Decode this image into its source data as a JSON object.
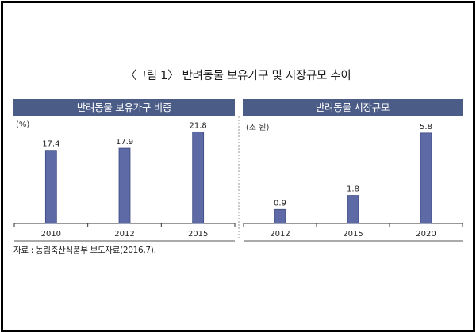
{
  "figure_title": "〈그림 1〉 반려동물 보유가구 및 시장규모 추이",
  "source": "자료 : 농림축산식품부 보도자료(2016,7).",
  "colors": {
    "header_bg": "#4b5c86",
    "bar": "#5d6aa6",
    "bar_edge": "#3f4a80",
    "axis": "#333333"
  },
  "chart_data": [
    {
      "type": "bar",
      "title": "반려동물 보유가구 비중",
      "unit": "(%)",
      "categories": [
        "2010",
        "2012",
        "2015"
      ],
      "values": [
        17.4,
        17.9,
        21.8
      ],
      "value_labels": [
        "17.4",
        "17.9",
        "21.8"
      ],
      "ylim": [
        0,
        23
      ],
      "grid": false
    },
    {
      "type": "bar",
      "title": "반려동물 시장규모",
      "unit": "(조 원)",
      "categories": [
        "2012",
        "2015",
        "2020"
      ],
      "values": [
        0.9,
        1.8,
        5.8
      ],
      "value_labels": [
        "0.9",
        "1.8",
        "5.8"
      ],
      "ylim": [
        0,
        6.2
      ],
      "grid": false
    }
  ]
}
